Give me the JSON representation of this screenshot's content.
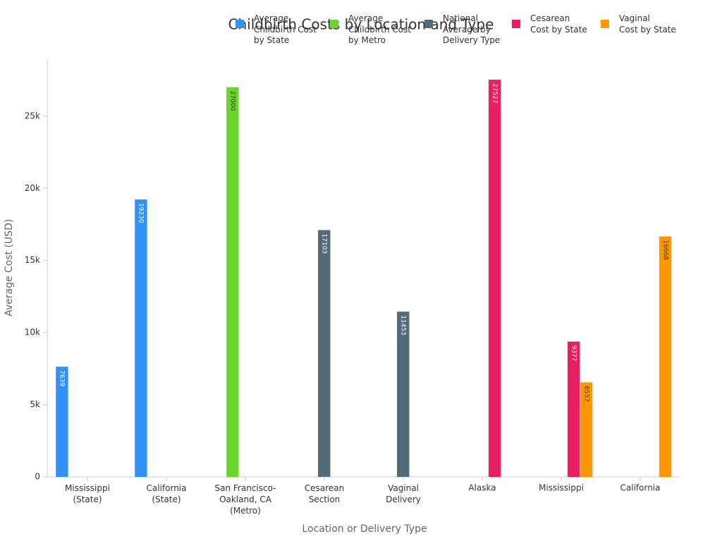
{
  "chart_data": {
    "type": "bar",
    "title": "Childbirth Costs by Location and Type",
    "x_label": "Location or Delivery Type",
    "y_label": "Average Cost (USD)",
    "categories": [
      "Mississippi\n(State)",
      "California\n(State)",
      "San Francisco-\nOakland, CA\n(Metro)",
      "Cesarean\nSection",
      "Vaginal\nDelivery",
      "Alaska",
      "Mississippi",
      "California"
    ],
    "series": [
      {
        "name": "Average\nChildbirth Cost\nby State",
        "color": "#3391f5",
        "values": [
          7639,
          19230,
          null,
          null,
          null,
          null,
          null,
          null
        ]
      },
      {
        "name": "Average\nChildbirth Cost\nby Metro",
        "color": "#6bd629",
        "values": [
          null,
          null,
          27000,
          null,
          null,
          null,
          null,
          null
        ]
      },
      {
        "name": "National\nAverage by\nDelivery Type",
        "color": "#546a76",
        "values": [
          null,
          null,
          null,
          17103,
          11453,
          null,
          null,
          null
        ]
      },
      {
        "name": "Cesarean\nCost by State",
        "color": "#e91e63",
        "values": [
          null,
          null,
          null,
          null,
          null,
          27527,
          9377,
          null
        ]
      },
      {
        "name": "Vaginal\nCost by State",
        "color": "#ff9800",
        "values": [
          null,
          null,
          null,
          null,
          null,
          null,
          6557,
          16668
        ]
      }
    ],
    "ylim": [
      0,
      28900
    ],
    "yticks": [
      0,
      {
        "value": 5000,
        "label": "5k"
      },
      {
        "value": 10000,
        "label": "10k"
      },
      {
        "value": 15000,
        "label": "15k"
      },
      {
        "value": 20000,
        "label": "20k"
      },
      {
        "value": 25000,
        "label": "25k"
      }
    ],
    "grid": false,
    "legend": "top"
  }
}
